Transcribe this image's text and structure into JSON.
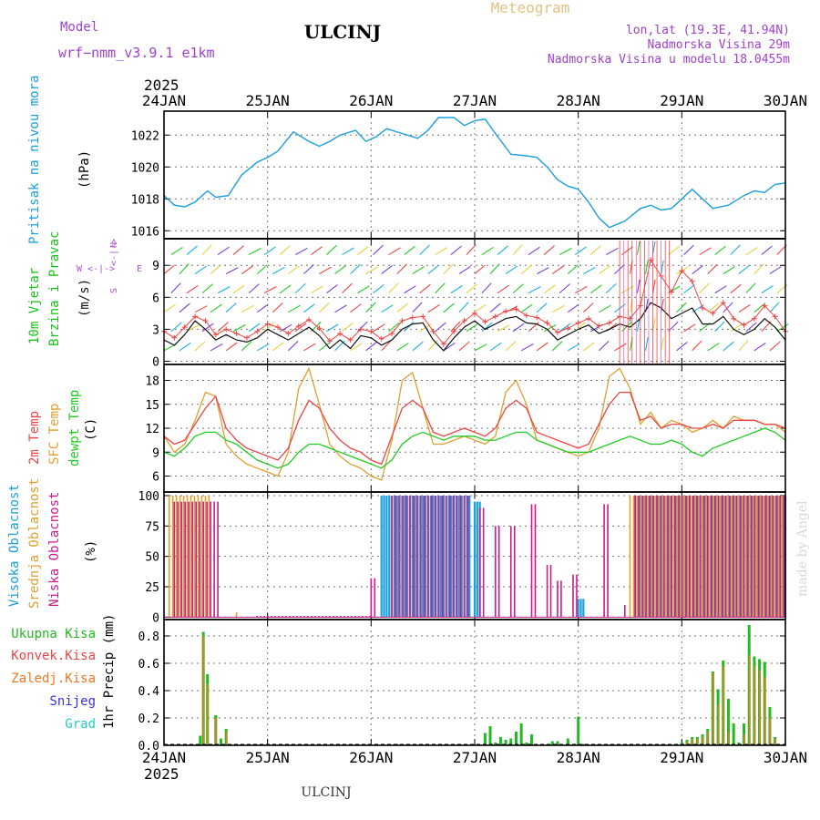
{
  "header": {
    "model_label": "Model",
    "model_name": "wrf−nmm_v3.9.1  e1km",
    "station": "ULCINJ",
    "title": "Meteogram",
    "lonlat": "lon,lat (19.3E, 41.94N)",
    "elevation": "Nadmorska Visina 29m",
    "elevation_model": "Nadmorska Visina u modelu 18.0455m",
    "footer_station": "ULCINJ",
    "credit": "made by Angel"
  },
  "colors": {
    "pressure": "#1a9fe0",
    "wind_title": "#19c419",
    "wind_units": "#111111",
    "compass": "#b050d0",
    "temp": "#ee4444",
    "sfc": "#e0a030",
    "dew": "#22cc22",
    "high_cloud": "#1a9fe0",
    "mid_cloud": "#e0a030",
    "low_cloud": "#d01a8a",
    "rain_total": "#22bb22",
    "rain_conv": "#ee4444",
    "rain_strat": "#ee7722",
    "snow": "#3333ee",
    "grad": "#22cccc",
    "header_magenta": "#a040d0",
    "header_gold": "#e6c080"
  },
  "chart_data": [
    {
      "type": "line",
      "name": "pressure",
      "ylabel_lines": [
        "Pritisak na nivou mora",
        "(hPa)"
      ],
      "year_label": "2025",
      "x_ticks": [
        "24JAN",
        "25JAN",
        "26JAN",
        "27JAN",
        "28JAN",
        "29JAN",
        "30JAN"
      ],
      "ylim": [
        1015.5,
        1023.5
      ],
      "y_ticks": [
        1016,
        1018,
        1020,
        1022
      ],
      "x_days": [
        0,
        0.1,
        0.2,
        0.3,
        0.42,
        0.5,
        0.62,
        0.75,
        0.9,
        1.0,
        1.1,
        1.25,
        1.4,
        1.5,
        1.6,
        1.7,
        1.85,
        1.95,
        2.05,
        2.15,
        2.3,
        2.45,
        2.55,
        2.65,
        2.8,
        2.9,
        3.0,
        3.1,
        3.2,
        3.35,
        3.5,
        3.6,
        3.7,
        3.8,
        3.9,
        4.0,
        4.1,
        4.2,
        4.3,
        4.45,
        4.6,
        4.7,
        4.8,
        4.9,
        5.0,
        5.1,
        5.2,
        5.3,
        5.45,
        5.6,
        5.7,
        5.8,
        5.9,
        6.0
      ],
      "series": [
        {
          "values": [
            1018.2,
            1017.6,
            1017.5,
            1017.8,
            1018.5,
            1018.1,
            1018.2,
            1019.5,
            1020.3,
            1020.6,
            1021.0,
            1022.2,
            1021.6,
            1021.3,
            1021.6,
            1022.0,
            1022.3,
            1021.6,
            1021.9,
            1022.4,
            1022.1,
            1021.8,
            1022.3,
            1023.1,
            1023.1,
            1022.6,
            1022.9,
            1023.0,
            1022.1,
            1020.8,
            1020.7,
            1020.6,
            1020.0,
            1019.2,
            1018.8,
            1018.6,
            1017.8,
            1016.8,
            1016.2,
            1016.6,
            1017.4,
            1017.6,
            1017.3,
            1017.4,
            1018.0,
            1018.6,
            1018.0,
            1017.4,
            1017.6,
            1018.2,
            1018.5,
            1018.4,
            1018.9,
            1019.0
          ]
        }
      ]
    },
    {
      "type": "line",
      "name": "wind",
      "ylabel_lines": [
        "10m Vjetar",
        "Brzina i Pravac",
        "(m/s)"
      ],
      "compass": {
        "n": "N",
        "s": "S",
        "w": "W",
        "e": "E"
      },
      "ylim": [
        -0.3,
        11.5
      ],
      "y_ticks": [
        0,
        3,
        6,
        9
      ],
      "x_days": [
        0,
        0.1,
        0.2,
        0.3,
        0.4,
        0.5,
        0.6,
        0.7,
        0.8,
        0.9,
        1.0,
        1.1,
        1.2,
        1.3,
        1.4,
        1.5,
        1.6,
        1.7,
        1.8,
        1.9,
        2.0,
        2.1,
        2.2,
        2.3,
        2.4,
        2.5,
        2.6,
        2.7,
        2.8,
        2.9,
        3.0,
        3.1,
        3.2,
        3.3,
        3.4,
        3.5,
        3.6,
        3.7,
        3.8,
        3.9,
        4.0,
        4.1,
        4.2,
        4.3,
        4.4,
        4.5,
        4.6,
        4.7,
        4.8,
        4.9,
        5.0,
        5.1,
        5.2,
        5.3,
        5.4,
        5.5,
        5.6,
        5.7,
        5.8,
        5.9,
        6.0
      ],
      "series": [
        {
          "name": "speed",
          "values": [
            2.0,
            1.5,
            2.5,
            3.8,
            3.0,
            2.0,
            2.5,
            2.0,
            1.8,
            2.2,
            3.0,
            2.5,
            2.0,
            2.6,
            3.2,
            2.4,
            1.2,
            2.0,
            1.2,
            2.4,
            2.2,
            1.5,
            2.0,
            3.0,
            3.5,
            3.6,
            2.0,
            1.0,
            2.2,
            3.2,
            3.8,
            3.0,
            3.5,
            4.0,
            4.2,
            3.6,
            3.5,
            3.0,
            2.0,
            2.5,
            3.0,
            3.4,
            2.6,
            3.0,
            3.5,
            3.2,
            4.0,
            5.5,
            5.0,
            4.0,
            4.5,
            5.0,
            3.5,
            3.5,
            4.2,
            3.0,
            2.5,
            3.0,
            4.0,
            3.2,
            2.0
          ]
        },
        {
          "name": "gust",
          "values": [
            2.8,
            2.2,
            3.2,
            4.2,
            3.8,
            2.5,
            3.0,
            2.6,
            2.2,
            2.8,
            3.5,
            3.2,
            2.6,
            3.3,
            3.9,
            3.1,
            1.9,
            2.6,
            2.0,
            3.0,
            2.8,
            2.1,
            2.6,
            3.8,
            4.1,
            4.2,
            2.8,
            1.6,
            2.8,
            3.8,
            4.5,
            3.7,
            4.2,
            4.7,
            4.9,
            4.3,
            4.1,
            3.6,
            2.7,
            3.1,
            3.6,
            4.0,
            3.3,
            3.6,
            4.2,
            4.0,
            5.2,
            9.5,
            8.0,
            6.5,
            8.5,
            7.5,
            5.0,
            4.5,
            5.5,
            4.0,
            3.4,
            4.0,
            5.2,
            4.2,
            2.8
          ]
        }
      ]
    },
    {
      "type": "line",
      "name": "temperature",
      "ylabel_lines": [
        "2m Temp",
        "SFC Temp",
        "dewpt Temp",
        "(C)"
      ],
      "ylim": [
        4,
        20
      ],
      "y_ticks": [
        6,
        9,
        12,
        15,
        18
      ],
      "x_days": [
        0,
        0.1,
        0.2,
        0.3,
        0.4,
        0.5,
        0.6,
        0.7,
        0.8,
        0.9,
        1.0,
        1.1,
        1.2,
        1.3,
        1.4,
        1.5,
        1.6,
        1.7,
        1.8,
        1.9,
        2.0,
        2.1,
        2.2,
        2.3,
        2.4,
        2.5,
        2.6,
        2.7,
        2.8,
        2.9,
        3.0,
        3.1,
        3.2,
        3.3,
        3.4,
        3.5,
        3.6,
        3.7,
        3.8,
        3.9,
        4.0,
        4.1,
        4.2,
        4.3,
        4.4,
        4.5,
        4.6,
        4.7,
        4.8,
        4.9,
        5.0,
        5.1,
        5.2,
        5.3,
        5.4,
        5.5,
        5.6,
        5.7,
        5.8,
        5.9,
        6.0
      ],
      "series": [
        {
          "name": "2m Temp",
          "values": [
            11.0,
            10.0,
            10.5,
            12.5,
            14.5,
            16.0,
            12.0,
            10.5,
            9.5,
            9.0,
            8.5,
            8.0,
            9.5,
            13.0,
            15.5,
            14.5,
            12.0,
            10.5,
            9.5,
            9.0,
            8.0,
            7.5,
            11.0,
            14.5,
            15.5,
            14.5,
            11.5,
            11.0,
            11.5,
            12.0,
            11.5,
            11.0,
            12.0,
            14.5,
            15.5,
            14.5,
            11.5,
            11.0,
            10.5,
            10.0,
            9.5,
            10.0,
            12.5,
            15.0,
            16.5,
            16.5,
            13.0,
            13.5,
            12.0,
            12.5,
            12.5,
            12.0,
            12.0,
            12.5,
            12.0,
            13.0,
            13.0,
            13.0,
            12.5,
            12.5,
            12.0
          ]
        },
        {
          "name": "SFC Temp",
          "values": [
            11.0,
            9.0,
            10.0,
            13.0,
            16.5,
            16.0,
            10.0,
            8.5,
            7.5,
            7.0,
            6.5,
            6.0,
            9.0,
            17.0,
            19.5,
            15.0,
            10.0,
            8.5,
            7.5,
            7.0,
            6.0,
            5.5,
            10.5,
            18.0,
            19.0,
            14.5,
            10.0,
            10.0,
            10.5,
            11.0,
            10.5,
            10.0,
            11.0,
            16.5,
            18.0,
            15.0,
            10.5,
            10.0,
            9.5,
            9.0,
            8.5,
            9.0,
            12.0,
            18.5,
            19.5,
            17.0,
            12.5,
            14.0,
            12.0,
            13.0,
            12.5,
            11.5,
            12.0,
            13.0,
            12.0,
            13.5,
            13.0,
            13.0,
            12.5,
            12.5,
            11.5
          ]
        },
        {
          "name": "dewpt Temp",
          "values": [
            9.0,
            8.5,
            9.5,
            11.0,
            11.5,
            11.5,
            10.5,
            10.0,
            9.0,
            8.0,
            7.5,
            7.0,
            7.5,
            9.0,
            10.0,
            10.0,
            9.5,
            9.0,
            8.5,
            8.0,
            7.5,
            7.0,
            8.0,
            10.0,
            11.0,
            11.5,
            11.0,
            10.5,
            11.0,
            11.0,
            11.0,
            10.5,
            10.5,
            11.0,
            11.5,
            11.5,
            10.5,
            10.0,
            9.5,
            9.0,
            9.0,
            9.0,
            9.5,
            10.0,
            10.5,
            11.0,
            10.5,
            10.0,
            10.0,
            10.5,
            10.0,
            9.0,
            8.5,
            9.5,
            10.0,
            10.5,
            11.0,
            11.5,
            12.0,
            11.5,
            10.5
          ]
        }
      ]
    },
    {
      "type": "bar",
      "name": "clouds",
      "ylabel_lines": [
        "Visoka Oblacnost",
        "Srednja Oblacnost",
        "Niska Oblacnost",
        "(%)"
      ],
      "ylim": [
        -2,
        103
      ],
      "y_ticks": [
        0,
        25,
        50,
        75,
        100
      ],
      "series": [
        {
          "name": "Visoka Oblacnost",
          "ranges": [
            [
              2.1,
              2.95,
              100
            ],
            [
              3.0,
              3.05,
              95
            ],
            [
              4.0,
              4.05,
              15
            ],
            [
              4.55,
              5.95,
              100
            ],
            [
              5.95,
              6.0,
              100
            ]
          ]
        },
        {
          "name": "Srednja Oblacnost",
          "ranges": [
            [
              0.05,
              0.45,
              100
            ],
            [
              2.2,
              2.95,
              100
            ],
            [
              4.5,
              6.0,
              100
            ],
            [
              0.7,
              0.72,
              4
            ]
          ]
        },
        {
          "name": "Niska Oblacnost",
          "ranges": [
            [
              0.1,
              0.55,
              95
            ],
            [
              2.0,
              2.05,
              32
            ],
            [
              2.2,
              2.95,
              100
            ],
            [
              3.05,
              3.1,
              90
            ],
            [
              3.2,
              3.25,
              75
            ],
            [
              3.35,
              3.4,
              75
            ],
            [
              3.55,
              3.6,
              93
            ],
            [
              3.7,
              3.75,
              43
            ],
            [
              3.8,
              3.85,
              30
            ],
            [
              3.95,
              4.0,
              35
            ],
            [
              4.25,
              4.3,
              93
            ],
            [
              4.55,
              6.0,
              100
            ],
            [
              4.45,
              4.47,
              10
            ],
            [
              0.9,
              2.0,
              1
            ]
          ]
        }
      ]
    },
    {
      "type": "bar",
      "name": "precipitation",
      "ylabel_lines": [
        "1hr Precip (mm)"
      ],
      "legend": [
        "Ukupna Kisa",
        "Konvek.Kisa",
        "Zaledj.Kisa",
        "Snijeg",
        "Grad"
      ],
      "ylim": [
        0,
        0.92
      ],
      "y_ticks": [
        0.0,
        0.2,
        0.4,
        0.6,
        0.8
      ],
      "year_label": "2025",
      "x_ticks": [
        "24JAN",
        "25JAN",
        "26JAN",
        "27JAN",
        "28JAN",
        "29JAN",
        "30JAN"
      ],
      "x_days": [
        0.35,
        0.38,
        0.42,
        0.5,
        0.55,
        0.6,
        2.25,
        3.1,
        3.15,
        3.2,
        3.25,
        3.3,
        3.35,
        3.4,
        3.45,
        3.5,
        3.55,
        3.65,
        3.75,
        3.8,
        3.9,
        4.0,
        4.05,
        5.0,
        5.05,
        5.1,
        5.15,
        5.2,
        5.25,
        5.3,
        5.35,
        5.4,
        5.45,
        5.5,
        5.55,
        5.6,
        5.65,
        5.7,
        5.75,
        5.8,
        5.85,
        5.9
      ],
      "series": [
        {
          "name": "Ukupna Kisa",
          "values": [
            0.07,
            0.83,
            0.52,
            0.22,
            0.05,
            0.12,
            0.01,
            0.09,
            0.14,
            0.02,
            0.06,
            0.04,
            0.05,
            0.1,
            0.16,
            0.02,
            0.08,
            0.01,
            0.03,
            0.03,
            0.05,
            0.21,
            0.01,
            0.02,
            0.04,
            0.06,
            0.06,
            0.08,
            0.12,
            0.54,
            0.41,
            0.62,
            0.34,
            0.16,
            0.02,
            0.16,
            0.88,
            0.65,
            0.63,
            0.61,
            0.28,
            0.06
          ]
        },
        {
          "name": "Konvek.Kisa",
          "values": [
            0.0,
            0.8,
            0.45,
            0.2,
            0.0,
            0.1,
            0.0,
            0.0,
            0.0,
            0.0,
            0.0,
            0.0,
            0.0,
            0.0,
            0.0,
            0.0,
            0.0,
            0.0,
            0.0,
            0.0,
            0.0,
            0.0,
            0.0,
            0.0,
            0.03,
            0.05,
            0.05,
            0.06,
            0.1,
            0.53,
            0.3,
            0.58,
            0.1,
            0.0,
            0.0,
            0.08,
            0.66,
            0.58,
            0.55,
            0.5,
            0.2,
            0.05
          ]
        }
      ]
    }
  ]
}
